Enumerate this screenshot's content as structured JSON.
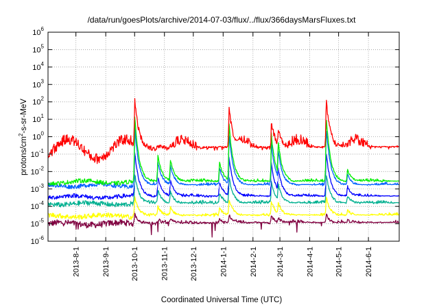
{
  "chart_data": {
    "type": "line",
    "title": "/data/run/goesPlots/archive/2014-07-03/flux/../flux/366daysMarsFluxes.txt",
    "xlabel": "Coordinated Universal Time (UTC)",
    "ylabel": {
      "prefix": "protons/cm",
      "sup": "2",
      "suffix": "-s-sr-MeV"
    },
    "yscale": "log",
    "ylim_exponents": [
      -6,
      6
    ],
    "y_ticks": [
      {
        "base": "10",
        "exp": "6"
      },
      {
        "base": "10",
        "exp": "5"
      },
      {
        "base": "10",
        "exp": "4"
      },
      {
        "base": "10",
        "exp": "3"
      },
      {
        "base": "10",
        "exp": "2"
      },
      {
        "base": "10",
        "exp": "1"
      },
      {
        "base": "10",
        "exp": "0"
      },
      {
        "base": "10",
        "exp": "-1"
      },
      {
        "base": "10",
        "exp": "-2"
      },
      {
        "base": "10",
        "exp": "-3"
      },
      {
        "base": "10",
        "exp": "-4"
      },
      {
        "base": "10",
        "exp": "-5"
      },
      {
        "base": "10",
        "exp": "-6"
      }
    ],
    "xlim": [
      "2013-07-03",
      "2014-07-03"
    ],
    "x_ticks": [
      "2013-8-1",
      "2013-9-1",
      "2013-10-1",
      "2013-11-1",
      "2013-12-1",
      "2014-1-1",
      "2014-2-1",
      "2014-3-1",
      "2014-4-1",
      "2014-5-1",
      "2014-6-1"
    ],
    "grid": true,
    "events": [
      {
        "date": "2013-10-01",
        "peak_log10": 2.2
      },
      {
        "date": "2013-10-25",
        "peak_log10": -0.5
      },
      {
        "date": "2013-11-07",
        "peak_log10": -0.8
      },
      {
        "date": "2013-12-28",
        "peak_log10": -1.0
      },
      {
        "date": "2014-01-07",
        "peak_log10": 1.7
      },
      {
        "date": "2014-02-20",
        "peak_log10": 0.9
      },
      {
        "date": "2014-02-27",
        "peak_log10": 0.5
      },
      {
        "date": "2014-04-18",
        "peak_log10": 2.2
      },
      {
        "date": "2014-05-10",
        "peak_log10": -1.5
      }
    ],
    "series": [
      {
        "color": "#800040",
        "base_log10": -5.0,
        "noise": 0.18,
        "gain": 0.1,
        "ripple": 0.07
      },
      {
        "color": "#ffff00",
        "base_log10": -4.55,
        "noise": 0.14,
        "gain": 0.2,
        "ripple": 0.06
      },
      {
        "color": "#00b090",
        "base_log10": -3.85,
        "noise": 0.14,
        "gain": 0.35,
        "ripple": 0.06
      },
      {
        "color": "#0000ff",
        "base_log10": -3.45,
        "noise": 0.12,
        "gain": 0.55,
        "ripple": 0.07
      },
      {
        "color": "#ffffff",
        "base_log10": -3.0,
        "noise": 0.1,
        "gain": 0.6,
        "ripple": 0.05
      },
      {
        "color": "#0060ff",
        "base_log10": -2.8,
        "noise": 0.12,
        "gain": 0.75,
        "ripple": 0.07
      },
      {
        "color": "#00ee00",
        "base_log10": -2.6,
        "noise": 0.12,
        "gain": 0.85,
        "ripple": 0.08
      },
      {
        "color": "#ff0000",
        "base_log10": -0.7,
        "noise": 0.3,
        "gain": 1.0,
        "ripple": 0.55
      }
    ]
  }
}
